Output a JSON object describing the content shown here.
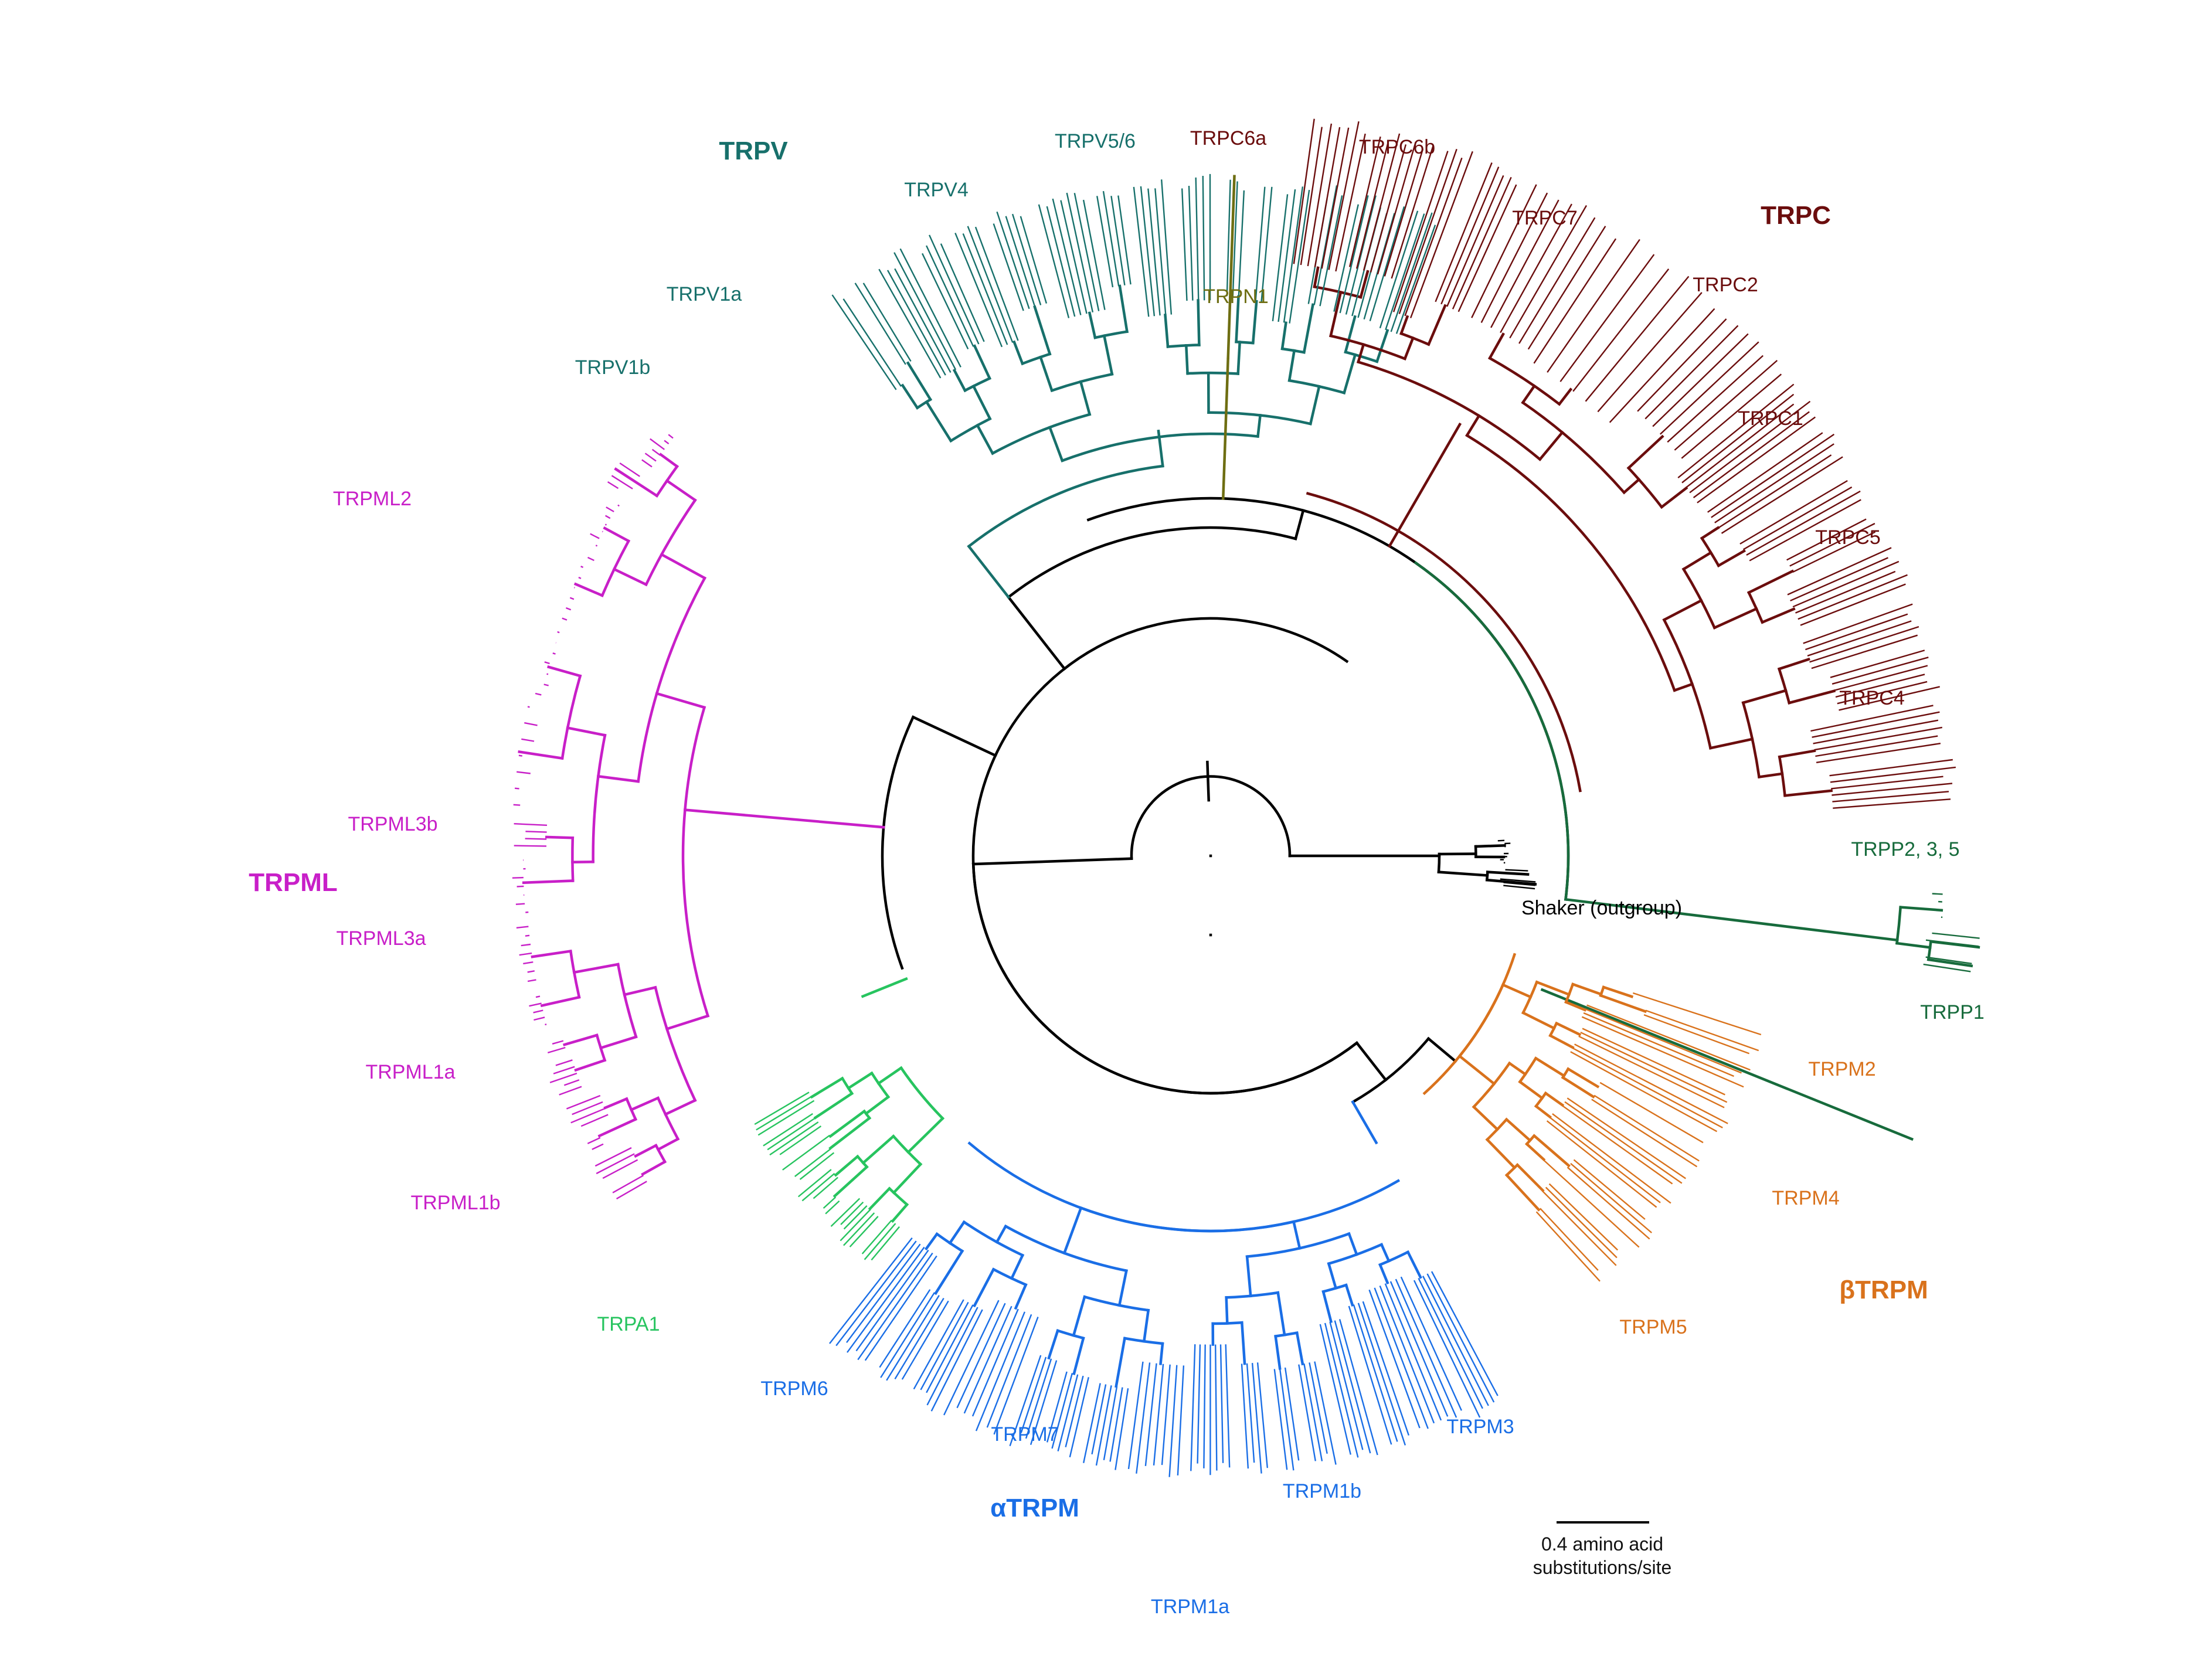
{
  "colors": {
    "TRPC": "#6b0d0d",
    "TRPV": "#17706b",
    "TRPN": "#6e6e12",
    "TRPML": "#c81fc8",
    "TRPA": "#27c45f",
    "aTRPM": "#1a6ee6",
    "bTRPM": "#d9721c",
    "TRPP": "#176b3c",
    "outgroup": "#000000"
  },
  "group_labels": {
    "TRPV": "TRPV",
    "TRPC": "TRPC",
    "TRPML": "TRPML",
    "aTRPM": "αTRPM",
    "bTRPM": "βTRPM"
  },
  "clade_labels": {
    "TRPV5_6": "TRPV5/6",
    "TRPV4": "TRPV4",
    "TRPV1a": "TRPV1a",
    "TRPV1b": "TRPV1b",
    "TRPN1": "TRPN1",
    "TRPC6a": "TRPC6a",
    "TRPC6b": "TRPC6b",
    "TRPC7": "TRPC7",
    "TRPC2": "TRPC2",
    "TRPC1": "TRPC1",
    "TRPC5": "TRPC5",
    "TRPC4": "TRPC4",
    "TRPP2_3_5": "TRPP2, 3, 5",
    "Shaker": "Shaker (outgroup)",
    "TRPP1": "TRPP1",
    "TRPM2": "TRPM2",
    "TRPM4": "TRPM4",
    "TRPM5": "TRPM5",
    "TRPM3": "TRPM3",
    "TRPM1b": "TRPM1b",
    "TRPM1a": "TRPM1a",
    "TRPM7": "TRPM7",
    "TRPM6": "TRPM6",
    "TRPA1": "TRPA1",
    "TRPML1b": "TRPML1b",
    "TRPML1a": "TRPML1a",
    "TRPML3a": "TRPML3a",
    "TRPML3b": "TRPML3b",
    "TRPML2": "TRPML2"
  },
  "scale_bar": {
    "line1": "0.4 amino acid",
    "line2": "substitutions/site",
    "value": 0.4
  }
}
